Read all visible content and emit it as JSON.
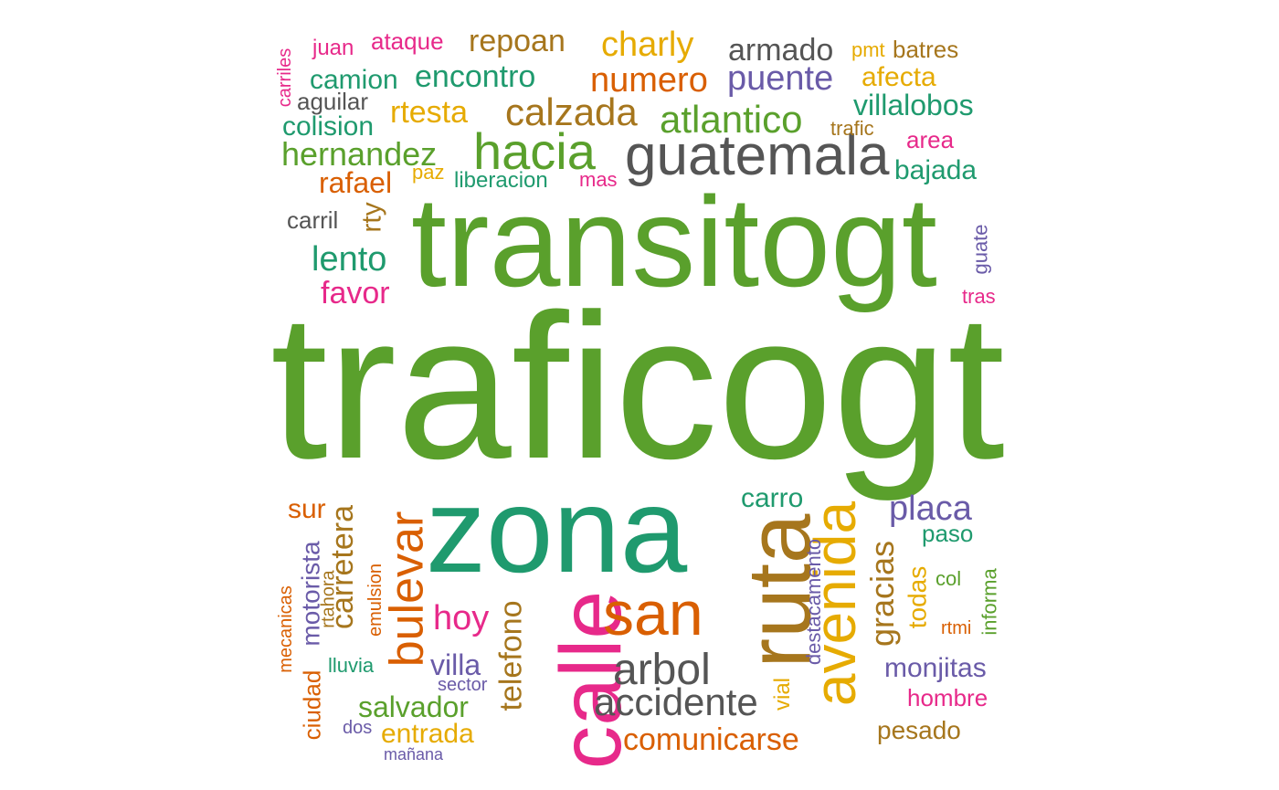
{
  "palette": {
    "green": "#5aa02c",
    "teal": "#1f9a6e",
    "gray": "#555555",
    "orange": "#d95f02",
    "mustard": "#e6ab02",
    "brown": "#a6761d",
    "purple": "#6a5ba8",
    "pink": "#e7298a"
  },
  "words": [
    {
      "text": "traficogt",
      "color": "green"
    },
    {
      "text": "transitogt",
      "color": "green"
    },
    {
      "text": "zona",
      "color": "teal"
    },
    {
      "text": "calle",
      "color": "pink"
    },
    {
      "text": "ruta",
      "color": "brown"
    },
    {
      "text": "avenida",
      "color": "mustard"
    },
    {
      "text": "san",
      "color": "orange"
    },
    {
      "text": "guatemala",
      "color": "gray"
    },
    {
      "text": "hacia",
      "color": "green"
    },
    {
      "text": "bulevar",
      "color": "orange"
    },
    {
      "text": "arbol",
      "color": "gray"
    },
    {
      "text": "accidente",
      "color": "gray"
    },
    {
      "text": "calzada",
      "color": "brown"
    },
    {
      "text": "atlantico",
      "color": "green"
    },
    {
      "text": "numero",
      "color": "orange"
    },
    {
      "text": "puente",
      "color": "purple"
    },
    {
      "text": "placa",
      "color": "purple"
    },
    {
      "text": "charly",
      "color": "mustard"
    },
    {
      "text": "repoan",
      "color": "brown"
    },
    {
      "text": "encontro",
      "color": "teal"
    },
    {
      "text": "armado",
      "color": "gray"
    },
    {
      "text": "hernandez",
      "color": "green"
    },
    {
      "text": "carretera",
      "color": "brown"
    },
    {
      "text": "comunicarse",
      "color": "orange"
    },
    {
      "text": "gracias",
      "color": "brown"
    },
    {
      "text": "telefono",
      "color": "brown"
    },
    {
      "text": "lento",
      "color": "teal"
    },
    {
      "text": "hoy",
      "color": "pink"
    },
    {
      "text": "salvador",
      "color": "green"
    },
    {
      "text": "monjitas",
      "color": "purple"
    },
    {
      "text": "villalobos",
      "color": "teal"
    },
    {
      "text": "camion",
      "color": "teal"
    },
    {
      "text": "rtesta",
      "color": "mustard"
    },
    {
      "text": "colision",
      "color": "teal"
    },
    {
      "text": "favor",
      "color": "pink"
    },
    {
      "text": "afecta",
      "color": "mustard"
    },
    {
      "text": "bajada",
      "color": "teal"
    },
    {
      "text": "rafael",
      "color": "orange"
    },
    {
      "text": "carro",
      "color": "teal"
    },
    {
      "text": "entrada",
      "color": "mustard"
    },
    {
      "text": "pesado",
      "color": "brown"
    },
    {
      "text": "villa",
      "color": "purple"
    },
    {
      "text": "motorista",
      "color": "purple"
    },
    {
      "text": "todas",
      "color": "mustard"
    },
    {
      "text": "sur",
      "color": "orange"
    },
    {
      "text": "paso",
      "color": "teal"
    },
    {
      "text": "hombre",
      "color": "pink"
    },
    {
      "text": "ataque",
      "color": "pink"
    },
    {
      "text": "batres",
      "color": "brown"
    },
    {
      "text": "area",
      "color": "pink"
    },
    {
      "text": "aguilar",
      "color": "gray"
    },
    {
      "text": "juan",
      "color": "pink"
    },
    {
      "text": "carril",
      "color": "gray"
    },
    {
      "text": "rty",
      "color": "brown"
    },
    {
      "text": "liberacion",
      "color": "teal"
    },
    {
      "text": "paz",
      "color": "mustard"
    },
    {
      "text": "mas",
      "color": "pink"
    },
    {
      "text": "trafic",
      "color": "brown"
    },
    {
      "text": "pmt",
      "color": "mustard"
    },
    {
      "text": "carriles",
      "color": "pink"
    },
    {
      "text": "guate",
      "color": "purple"
    },
    {
      "text": "tras",
      "color": "pink"
    },
    {
      "text": "ciudad",
      "color": "orange"
    },
    {
      "text": "destacamento",
      "color": "purple"
    },
    {
      "text": "vial",
      "color": "mustard"
    },
    {
      "text": "informa",
      "color": "green"
    },
    {
      "text": "emulsion",
      "color": "orange"
    },
    {
      "text": "lluvia",
      "color": "teal"
    },
    {
      "text": "col",
      "color": "green"
    },
    {
      "text": "rtmi",
      "color": "orange"
    },
    {
      "text": "rtahora",
      "color": "brown"
    },
    {
      "text": "mecanicas",
      "color": "orange"
    },
    {
      "text": "sector",
      "color": "purple"
    },
    {
      "text": "dos",
      "color": "purple"
    },
    {
      "text": "mañana",
      "color": "purple"
    }
  ]
}
